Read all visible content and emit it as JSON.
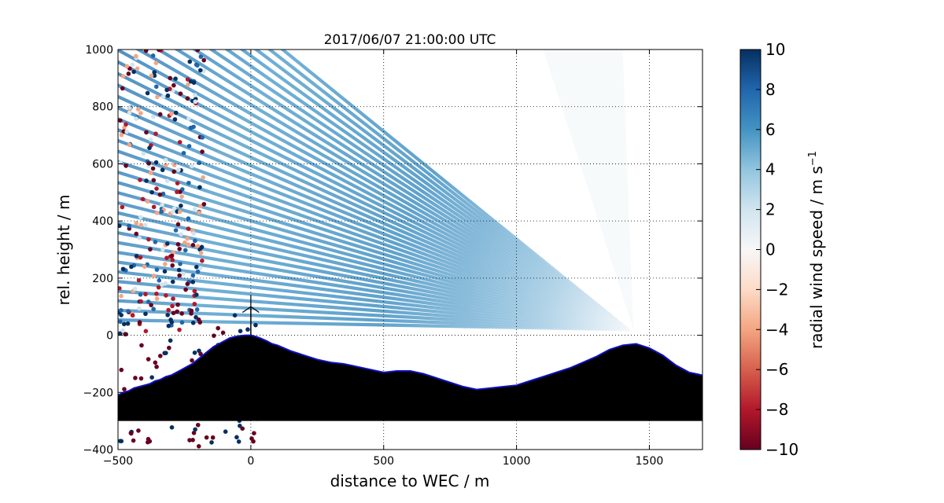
{
  "chart_data": {
    "type": "scatter",
    "title": "2017/06/07 21:00:00 UTC",
    "xlabel": "distance to WEC / m",
    "ylabel": "rel. height / m",
    "xlim": [
      -500,
      1700
    ],
    "ylim": [
      -400,
      1000
    ],
    "xticks": [
      -500,
      0,
      500,
      1000,
      1500
    ],
    "yticks": [
      -400,
      -200,
      0,
      200,
      400,
      600,
      800,
      1000
    ],
    "grid": true,
    "colormap": "RdBu",
    "colorbar": {
      "label": "radial wind speed / m s",
      "label_sup": "−1",
      "range": [
        -10,
        10
      ],
      "ticks": [
        -10,
        -8,
        -6,
        -4,
        -2,
        0,
        2,
        4,
        6,
        8,
        10
      ]
    },
    "scan": {
      "origin": [
        1420,
        20
      ],
      "max_range_m": 2300,
      "elevation_angles_deg_from_horizontal": [
        1,
        2,
        3,
        4,
        5,
        6,
        7,
        8,
        9,
        10,
        11,
        12,
        13,
        14,
        15,
        16,
        17,
        18,
        19,
        20,
        21,
        22,
        23,
        24,
        25,
        26,
        27,
        28,
        29,
        30,
        31,
        32,
        33,
        34,
        35,
        36,
        37
      ],
      "dominant_radial_speed_ms": 5
    },
    "terrain": {
      "x": [
        -500,
        -480,
        -460,
        -440,
        -420,
        -400,
        -380,
        -360,
        -340,
        -320,
        -300,
        -280,
        -260,
        -240,
        -220,
        -200,
        -180,
        -160,
        -140,
        -120,
        -100,
        -80,
        -60,
        -40,
        -20,
        0,
        20,
        40,
        60,
        80,
        100,
        150,
        200,
        250,
        300,
        350,
        400,
        450,
        500,
        550,
        600,
        650,
        700,
        750,
        800,
        850,
        900,
        950,
        1000,
        1050,
        1100,
        1150,
        1200,
        1250,
        1300,
        1350,
        1400,
        1450,
        1500,
        1550,
        1600,
        1650,
        1700
      ],
      "y": [
        -210,
        -200,
        -195,
        -185,
        -180,
        -175,
        -170,
        -160,
        -155,
        -145,
        -140,
        -130,
        -120,
        -110,
        -100,
        -85,
        -70,
        -55,
        -40,
        -30,
        -20,
        -10,
        -5,
        -2,
        0,
        0,
        -5,
        -12,
        -20,
        -30,
        -35,
        -55,
        -70,
        -85,
        -95,
        -100,
        -110,
        -120,
        -130,
        -125,
        -125,
        -135,
        -150,
        -165,
        -180,
        -190,
        -185,
        -180,
        -175,
        -160,
        -145,
        -130,
        -115,
        -95,
        -75,
        -50,
        -35,
        -30,
        -45,
        -70,
        -105,
        -130,
        -140
      ],
      "baseline": -300,
      "outline_color": "#1010c0"
    },
    "wec": {
      "x": 0,
      "hub_height_m": 100,
      "rotor_radius_m": 40
    },
    "left_region_scatter_colors": [
      "#67001f",
      "#053061",
      "#d1e5f0",
      "#f4a582",
      "#2166ac",
      "#b2182b"
    ]
  }
}
